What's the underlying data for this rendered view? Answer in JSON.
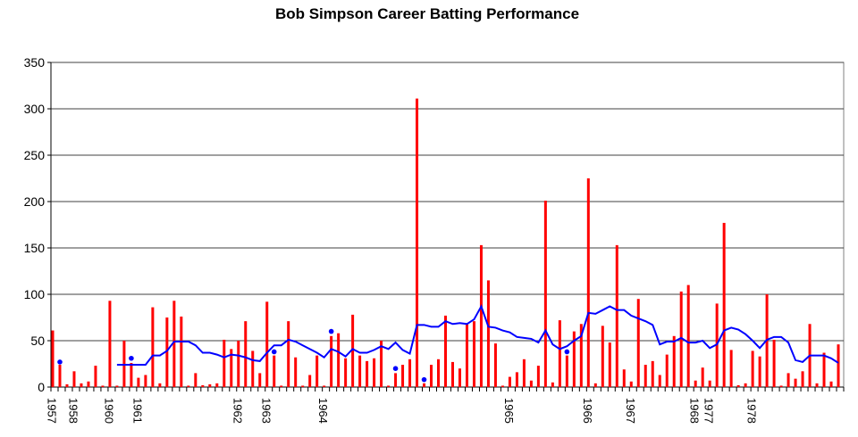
{
  "chart_data": {
    "type": "bar",
    "title": "Bob Simpson Career Batting Performance",
    "xlabel": "",
    "ylabel": "",
    "ylim": [
      0,
      350
    ],
    "yticks": [
      "0",
      "50",
      "100",
      "150",
      "200",
      "250",
      "300",
      "350"
    ],
    "grid": true,
    "legend": "none",
    "year_labels": [
      {
        "index": 0,
        "label": "1957"
      },
      {
        "index": 3,
        "label": "1958"
      },
      {
        "index": 8,
        "label": "1960"
      },
      {
        "index": 12,
        "label": "1961"
      },
      {
        "index": 26,
        "label": "1962"
      },
      {
        "index": 30,
        "label": "1963"
      },
      {
        "index": 38,
        "label": "1964"
      },
      {
        "index": 64,
        "label": "1965"
      },
      {
        "index": 75,
        "label": "1966"
      },
      {
        "index": 81,
        "label": "1967"
      },
      {
        "index": 90,
        "label": "1968"
      },
      {
        "index": 92,
        "label": "1977"
      },
      {
        "index": 98,
        "label": "1978"
      }
    ],
    "series": [
      {
        "type": "bar",
        "color": "#ff0000",
        "values": [
          61,
          24,
          3,
          17,
          4,
          6,
          23,
          0,
          93,
          0,
          50,
          26,
          10,
          13,
          86,
          4,
          75,
          93,
          76,
          0,
          15,
          2,
          3,
          4,
          51,
          41,
          50,
          71,
          39,
          15,
          92,
          34,
          0,
          71,
          32,
          0,
          13,
          34,
          0,
          55,
          58,
          31,
          78,
          34,
          28,
          31,
          50,
          0,
          15,
          24,
          30,
          311,
          4,
          24,
          30,
          77,
          27,
          20,
          68,
          71,
          153,
          115,
          47,
          0,
          11,
          16,
          30,
          7,
          23,
          201,
          5,
          72,
          34,
          60,
          68,
          225,
          4,
          66,
          48,
          153,
          19,
          6,
          95,
          24,
          28,
          13,
          35,
          55,
          103,
          110,
          7,
          21,
          7,
          90,
          177,
          40,
          2,
          4,
          39,
          33,
          100,
          51,
          0,
          15,
          9,
          17,
          68,
          4,
          37,
          6,
          46
        ]
      },
      {
        "type": "line",
        "color": "#0000ff",
        "values": [
          null,
          null,
          null,
          null,
          null,
          null,
          null,
          null,
          null,
          24,
          24,
          24,
          24,
          24,
          34,
          34,
          39,
          49,
          49,
          49,
          45,
          37,
          37,
          35,
          32,
          35,
          34,
          32,
          29,
          28,
          37,
          45,
          45,
          51,
          49,
          45,
          41,
          37,
          32,
          41,
          38,
          33,
          41,
          37,
          37,
          40,
          44,
          41,
          48,
          40,
          36,
          67,
          67,
          65,
          65,
          71,
          68,
          69,
          68,
          73,
          87,
          65,
          64,
          61,
          59,
          54,
          53,
          52,
          48,
          61,
          46,
          41,
          44,
          50,
          55,
          80,
          79,
          83,
          87,
          83,
          83,
          77,
          74,
          71,
          67,
          46,
          49,
          49,
          53,
          48,
          48,
          50,
          42,
          46,
          61,
          64,
          62,
          57,
          50,
          42,
          51,
          54,
          54,
          48,
          29,
          27,
          34,
          34,
          34,
          31,
          26
        ]
      },
      {
        "type": "scatter",
        "color": "#0000ff",
        "points": [
          {
            "index": 1,
            "value": 27
          },
          {
            "index": 11,
            "value": 31
          },
          {
            "index": 31,
            "value": 38
          },
          {
            "index": 39,
            "value": 60
          },
          {
            "index": 48,
            "value": 20
          },
          {
            "index": 52,
            "value": 8
          },
          {
            "index": 72,
            "value": 38
          }
        ]
      }
    ]
  }
}
